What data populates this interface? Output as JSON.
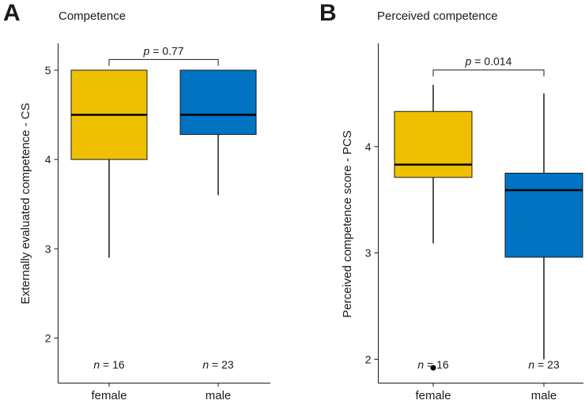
{
  "chart_data": [
    {
      "type": "box",
      "panel_letter": "A",
      "title": "Competence",
      "ylabel": "Externally evaluated competence - CS",
      "xlabel": "",
      "ylim": [
        1.5,
        5.3
      ],
      "yticks": [
        2,
        3,
        4,
        5
      ],
      "categories": [
        "female",
        "male"
      ],
      "boxes": [
        {
          "category": "female",
          "min": 2.9,
          "q1": 4.0,
          "median": 4.5,
          "q3": 5.0,
          "max": 5.0,
          "outliers": [],
          "color": "#EFC000",
          "n_text": "n",
          "n_value": " = 16"
        },
        {
          "category": "male",
          "min": 3.6,
          "q1": 4.28,
          "median": 4.5,
          "q3": 5.0,
          "max": 5.0,
          "outliers": [],
          "color": "#0073C2",
          "n_text": "n",
          "n_value": " = 23"
        }
      ],
      "comparison": {
        "p_symbol": "p",
        "p_value": " = 0.77",
        "y": 5.12
      }
    },
    {
      "type": "box",
      "panel_letter": "B",
      "title": "Perceived competence",
      "ylabel": "Perceived competence score - PCS",
      "xlabel": "",
      "ylim": [
        1.78,
        4.97
      ],
      "yticks": [
        2,
        3,
        4
      ],
      "categories": [
        "female",
        "male"
      ],
      "boxes": [
        {
          "category": "female",
          "min": 3.09,
          "q1": 3.71,
          "median": 3.83,
          "q3": 4.33,
          "max": 4.58,
          "outliers": [
            1.92
          ],
          "color": "#EFC000",
          "n_text": "n",
          "n_value": " = 16"
        },
        {
          "category": "male",
          "min": 2.0,
          "q1": 2.96,
          "median": 3.59,
          "q3": 3.75,
          "max": 4.5,
          "outliers": [],
          "color": "#0073C2",
          "n_text": "n",
          "n_value": " = 23"
        }
      ],
      "comparison": {
        "p_symbol": "p",
        "p_value": " = 0.014",
        "y": 4.72
      }
    }
  ]
}
